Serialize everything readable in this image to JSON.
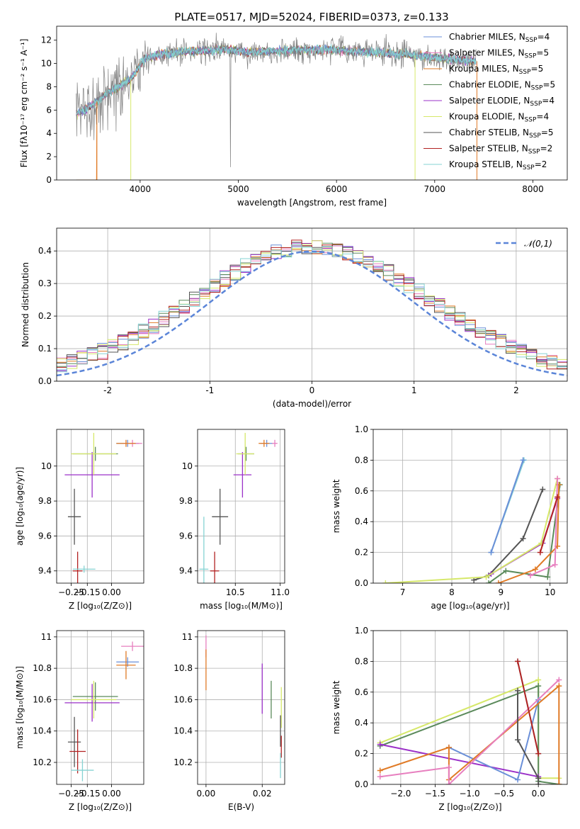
{
  "figure": {
    "title": "PLATE=0517, MJD=52024, FIBERID=0373, z=0.133"
  },
  "palette": {
    "chabrier_miles": "#6a8fd8",
    "salpeter_miles": "#e77fbf",
    "kroupa_miles": "#e07b27",
    "chabrier_elodie": "#5b8a5b",
    "salpeter_elodie": "#9b30c8",
    "kroupa_elodie": "#d6e86a",
    "chabrier_stelib": "#555555",
    "salpeter_stelib": "#b22222",
    "kroupa_stelib": "#86d3d3",
    "data": "#808080",
    "normal_line": "#5b85d8"
  },
  "chart_data": [
    {
      "id": "spectrum",
      "type": "line",
      "title": "PLATE=0517, MJD=52024, FIBERID=0373, z=0.133",
      "xlabel": "wavelength [Angstrom, rest frame]",
      "ylabel": "Flux [fλ10⁻¹⁷ erg cm⁻² s⁻¹ A⁻¹]",
      "xlim": [
        3150,
        8350
      ],
      "ylim": [
        0,
        13.2
      ],
      "xticks": [
        4000,
        5000,
        6000,
        7000,
        8000
      ],
      "yticks": [
        0,
        2,
        4,
        6,
        8,
        10,
        12
      ],
      "grid": false,
      "legend_position": "right",
      "legend": [
        {
          "label": "Chabrier MILES, N",
          "sub": "SSP",
          "eq": "=4",
          "color_key": "chabrier_miles"
        },
        {
          "label": "Salpeter MILES, N",
          "sub": "SSP",
          "eq": "=5",
          "color_key": "salpeter_miles"
        },
        {
          "label": "Kroupa MILES, N",
          "sub": "SSP",
          "eq": "=5",
          "color_key": "kroupa_miles"
        },
        {
          "label": "Chabrier ELODIE, N",
          "sub": "SSP",
          "eq": "=5",
          "color_key": "chabrier_elodie"
        },
        {
          "label": "Salpeter ELODIE, N",
          "sub": "SSP",
          "eq": "=4",
          "color_key": "salpeter_elodie"
        },
        {
          "label": "Kroupa ELODIE, N",
          "sub": "SSP",
          "eq": "=4",
          "color_key": "kroupa_elodie"
        },
        {
          "label": "Chabrier STELIB, N",
          "sub": "SSP",
          "eq": "=5",
          "color_key": "chabrier_stelib"
        },
        {
          "label": "Salpeter STELIB, N",
          "sub": "SSP",
          "eq": "=2",
          "color_key": "salpeter_stelib"
        },
        {
          "label": "Kroupa STELIB, N",
          "sub": "SSP",
          "eq": "=2",
          "color_key": "kroupa_stelib"
        }
      ],
      "continuum": [
        [
          3350,
          5.6
        ],
        [
          3500,
          6.4
        ],
        [
          3700,
          7.6
        ],
        [
          3900,
          8.6
        ],
        [
          4050,
          10.5
        ],
        [
          4300,
          10.9
        ],
        [
          4600,
          11.1
        ],
        [
          4860,
          11.2
        ],
        [
          5100,
          11.0
        ],
        [
          5500,
          11.1
        ],
        [
          5900,
          11.2
        ],
        [
          6300,
          11.0
        ],
        [
          6700,
          10.8
        ],
        [
          7100,
          10.4
        ],
        [
          7400,
          10.2
        ]
      ]
    },
    {
      "id": "residuals",
      "type": "histogram",
      "xlabel": "(data-model)/error",
      "ylabel": "Normed distribution",
      "xlim": [
        -2.5,
        2.5
      ],
      "ylim": [
        0,
        0.47
      ],
      "xticks": [
        -2,
        -1,
        0,
        1,
        2
      ],
      "yticks": [
        0.0,
        0.1,
        0.2,
        0.3,
        0.4
      ],
      "grid": true,
      "legend_position": "upper-right",
      "legend": [
        {
          "label": "𝒩(0,1)",
          "style": "dashed",
          "color_key": "normal_line"
        }
      ],
      "bin_width": 0.1
    },
    {
      "id": "age_vs_Z",
      "type": "scatter",
      "xlabel": "Z [log₁₀(Z/Z⊙)]",
      "ylabel": "age  [log₁₀(age/yr)]",
      "xlim": [
        -0.34,
        0.2
      ],
      "ylim": [
        9.33,
        10.21
      ],
      "xticks": [
        -0.25,
        -0.15,
        0.0
      ],
      "xticklabels": [
        "−0.25",
        "−0.15",
        "0.00"
      ],
      "yticks": [
        9.4,
        9.6,
        9.8,
        10.0
      ],
      "grid": true,
      "points": [
        {
          "model": "chabrier_miles",
          "x": 0.1,
          "y": 10.13,
          "xerr": 0.07,
          "yerr": 0.02
        },
        {
          "model": "salpeter_miles",
          "x": 0.13,
          "y": 10.13,
          "xerr": 0.06,
          "yerr": 0.02
        },
        {
          "model": "kroupa_miles",
          "x": 0.09,
          "y": 10.13,
          "xerr": 0.06,
          "yerr": 0.02
        },
        {
          "model": "chabrier_elodie",
          "x": -0.1,
          "y": 10.07,
          "xerr": 0.14,
          "yerr": 0.04
        },
        {
          "model": "salpeter_elodie",
          "x": -0.12,
          "y": 9.95,
          "xerr": 0.17,
          "yerr": 0.13
        },
        {
          "model": "kroupa_elodie",
          "x": -0.11,
          "y": 10.07,
          "xerr": 0.14,
          "yerr": 0.12
        },
        {
          "model": "chabrier_stelib",
          "x": -0.23,
          "y": 9.71,
          "xerr": 0.04,
          "yerr": 0.16
        },
        {
          "model": "salpeter_stelib",
          "x": -0.21,
          "y": 9.4,
          "xerr": 0.03,
          "yerr": 0.11
        },
        {
          "model": "kroupa_stelib",
          "x": -0.17,
          "y": 9.41,
          "xerr": 0.07,
          "yerr": 0.02
        }
      ]
    },
    {
      "id": "age_vs_mass",
      "type": "scatter",
      "xlabel": "mass [log₁₀(M/M⊙)]",
      "ylabel": "",
      "xlim": [
        10.08,
        11.05
      ],
      "ylim": [
        9.33,
        10.21
      ],
      "xticks": [
        10.5,
        11.0
      ],
      "xticklabels": [
        "10.5",
        "11.0"
      ],
      "yticks": [
        9.4,
        9.6,
        9.8,
        10.0
      ],
      "grid": true,
      "points": [
        {
          "model": "chabrier_miles",
          "x": 10.85,
          "y": 10.13,
          "xerr": 0.07,
          "yerr": 0.02
        },
        {
          "model": "salpeter_miles",
          "x": 10.94,
          "y": 10.13,
          "xerr": 0.03,
          "yerr": 0.02
        },
        {
          "model": "kroupa_miles",
          "x": 10.82,
          "y": 10.13,
          "xerr": 0.06,
          "yerr": 0.02
        },
        {
          "model": "chabrier_elodie",
          "x": 10.62,
          "y": 10.07,
          "xerr": 0.09,
          "yerr": 0.04
        },
        {
          "model": "salpeter_elodie",
          "x": 10.58,
          "y": 9.95,
          "xerr": 0.1,
          "yerr": 0.13
        },
        {
          "model": "kroupa_elodie",
          "x": 10.61,
          "y": 10.07,
          "xerr": 0.1,
          "yerr": 0.12
        },
        {
          "model": "chabrier_stelib",
          "x": 10.33,
          "y": 9.71,
          "xerr": 0.09,
          "yerr": 0.16
        },
        {
          "model": "salpeter_stelib",
          "x": 10.27,
          "y": 9.4,
          "xerr": 0.05,
          "yerr": 0.11
        },
        {
          "model": "kroupa_stelib",
          "x": 10.15,
          "y": 9.41,
          "xerr": 0.05,
          "yerr": 0.3
        }
      ]
    },
    {
      "id": "mass_weight_vs_age",
      "type": "line",
      "xlabel": "age  [log₁₀(age/yr)]",
      "ylabel": "mass weight",
      "xlim": [
        6.4,
        10.35
      ],
      "ylim": [
        0,
        1.0
      ],
      "xticks": [
        7,
        8,
        9,
        10
      ],
      "yticks": [
        0.0,
        0.2,
        0.4,
        0.6,
        0.8,
        1.0
      ],
      "grid": true,
      "series": [
        {
          "model": "kroupa_stelib",
          "points": [
            [
              8.8,
              0.2
            ],
            [
              9.47,
              0.8
            ]
          ]
        },
        {
          "model": "chabrier_miles",
          "points": [
            [
              8.8,
              0.2
            ],
            [
              9.45,
              0.8
            ]
          ]
        },
        {
          "model": "chabrier_stelib",
          "points": [
            [
              8.45,
              0.02
            ],
            [
              8.75,
              0.05
            ],
            [
              9.45,
              0.29
            ],
            [
              9.85,
              0.61
            ]
          ]
        },
        {
          "model": "salpeter_elodie",
          "points": [
            [
              8.8,
              0.06
            ],
            [
              9.85,
              0.26
            ],
            [
              10.15,
              0.55
            ]
          ]
        },
        {
          "model": "kroupa_elodie",
          "points": [
            [
              6.65,
              0.0
            ],
            [
              8.7,
              0.04
            ],
            [
              9.82,
              0.26
            ],
            [
              10.15,
              0.68
            ]
          ]
        },
        {
          "model": "chabrier_elodie",
          "points": [
            [
              8.75,
              0.0
            ],
            [
              9.1,
              0.08
            ],
            [
              9.95,
              0.04
            ],
            [
              10.2,
              0.64
            ]
          ]
        },
        {
          "model": "kroupa_miles",
          "points": [
            [
              8.95,
              0.0
            ],
            [
              9.7,
              0.09
            ],
            [
              10.15,
              0.24
            ],
            [
              10.18,
              0.64
            ]
          ]
        },
        {
          "model": "salpeter_miles",
          "points": [
            [
              9.6,
              0.05
            ],
            [
              10.1,
              0.12
            ],
            [
              10.15,
              0.68
            ]
          ]
        },
        {
          "model": "salpeter_stelib",
          "points": [
            [
              9.8,
              0.2
            ],
            [
              10.15,
              0.56
            ]
          ]
        }
      ]
    },
    {
      "id": "mass_vs_Z",
      "type": "scatter",
      "xlabel": "Z [log₁₀(Z/Z⊙)]",
      "ylabel": "mass [log₁₀(M/M⊙)]",
      "xlim": [
        -0.34,
        0.2
      ],
      "ylim": [
        10.06,
        11.04
      ],
      "xticks": [
        -0.25,
        -0.15,
        0.0
      ],
      "xticklabels": [
        "−0.25",
        "−0.15",
        "0.00"
      ],
      "yticks": [
        10.2,
        10.4,
        10.6,
        10.8,
        11.0
      ],
      "grid": true,
      "points": [
        {
          "model": "chabrier_miles",
          "x": 0.1,
          "y": 10.84,
          "xerr": 0.07,
          "yerr": 0.03
        },
        {
          "model": "salpeter_miles",
          "x": 0.13,
          "y": 10.94,
          "xerr": 0.07,
          "yerr": 0.03
        },
        {
          "model": "kroupa_miles",
          "x": 0.09,
          "y": 10.82,
          "xerr": 0.06,
          "yerr": 0.09
        },
        {
          "model": "chabrier_elodie",
          "x": -0.1,
          "y": 10.62,
          "xerr": 0.14,
          "yerr": 0.09
        },
        {
          "model": "salpeter_elodie",
          "x": -0.12,
          "y": 10.58,
          "xerr": 0.17,
          "yerr": 0.12
        },
        {
          "model": "kroupa_elodie",
          "x": -0.11,
          "y": 10.6,
          "xerr": 0.14,
          "yerr": 0.12
        },
        {
          "model": "chabrier_stelib",
          "x": -0.23,
          "y": 10.33,
          "xerr": 0.04,
          "yerr": 0.16
        },
        {
          "model": "salpeter_stelib",
          "x": -0.21,
          "y": 10.27,
          "xerr": 0.05,
          "yerr": 0.14
        },
        {
          "model": "kroupa_stelib",
          "x": -0.18,
          "y": 10.15,
          "xerr": 0.07,
          "yerr": 0.07
        }
      ]
    },
    {
      "id": "mass_vs_ebv",
      "type": "scatter",
      "xlabel": "E(B-V)",
      "ylabel": "",
      "xlim": [
        -0.003,
        0.028
      ],
      "ylim": [
        10.06,
        11.04
      ],
      "xticks": [
        0.0,
        0.02
      ],
      "xticklabels": [
        "0.00",
        "0.02"
      ],
      "yticks": [
        10.2,
        10.4,
        10.6,
        10.8,
        11.0
      ],
      "grid": true,
      "points": [
        {
          "model": "salpeter_miles",
          "x": 0.0,
          "y": 10.94,
          "xerr": 0.0,
          "yerr": 0.07
        },
        {
          "model": "kroupa_miles",
          "x": 0.0,
          "y": 10.79,
          "xerr": 0.0,
          "yerr": 0.13
        },
        {
          "model": "salpeter_elodie",
          "x": 0.02,
          "y": 10.67,
          "xerr": 0.0,
          "yerr": 0.16
        },
        {
          "model": "chabrier_elodie",
          "x": 0.0232,
          "y": 10.6,
          "xerr": 0.0,
          "yerr": 0.12
        },
        {
          "model": "kroupa_elodie",
          "x": 0.0268,
          "y": 10.55,
          "xerr": 0.0,
          "yerr": 0.13
        },
        {
          "model": "chabrier_stelib",
          "x": 0.0265,
          "y": 10.4,
          "xerr": 0.0,
          "yerr": 0.1
        },
        {
          "model": "salpeter_stelib",
          "x": 0.0268,
          "y": 10.3,
          "xerr": 0.0,
          "yerr": 0.07
        },
        {
          "model": "kroupa_stelib",
          "x": 0.0265,
          "y": 10.18,
          "xerr": 0.0,
          "yerr": 0.08
        }
      ]
    },
    {
      "id": "mass_weight_vs_Z",
      "type": "line",
      "xlabel": "Z [log₁₀(Z/Z⊙)]",
      "ylabel": "mass weight",
      "xlim": [
        -2.4,
        0.42
      ],
      "ylim": [
        0,
        1.0
      ],
      "xticks": [
        -2.0,
        -1.5,
        -1.0,
        -0.5,
        0.0
      ],
      "xticklabels": [
        "−2.0",
        "−1.5",
        "−1.0",
        "−0.5",
        "0.0"
      ],
      "yticks": [
        0.0,
        0.2,
        0.4,
        0.6,
        0.8,
        1.0
      ],
      "grid": true,
      "series": [
        {
          "model": "kroupa_elodie",
          "points": [
            [
              -2.3,
              0.27
            ],
            [
              0.0,
              0.68
            ],
            [
              0.0,
              0.04
            ],
            [
              0.3,
              0.04
            ]
          ]
        },
        {
          "model": "chabrier_elodie",
          "points": [
            [
              -2.3,
              0.25
            ],
            [
              0.0,
              0.64
            ],
            [
              0.0,
              0.02
            ],
            [
              0.3,
              0.0
            ]
          ]
        },
        {
          "model": "salpeter_elodie",
          "points": [
            [
              -2.3,
              0.26
            ],
            [
              0.0,
              0.05
            ]
          ]
        },
        {
          "model": "chabrier_miles",
          "points": [
            [
              -1.3,
              0.24
            ],
            [
              -0.3,
              0.03
            ],
            [
              0.0,
              0.55
            ]
          ]
        },
        {
          "model": "kroupa_miles",
          "points": [
            [
              -2.3,
              0.09
            ],
            [
              -1.3,
              0.24
            ],
            [
              -1.3,
              0.03
            ],
            [
              0.3,
              0.64
            ],
            [
              0.3,
              0.0
            ]
          ]
        },
        {
          "model": "salpeter_miles",
          "points": [
            [
              -2.3,
              0.05
            ],
            [
              -1.3,
              0.11
            ],
            [
              -1.3,
              0.0
            ],
            [
              0.3,
              0.68
            ]
          ]
        },
        {
          "model": "chabrier_stelib",
          "points": [
            [
              -0.3,
              0.61
            ],
            [
              -0.3,
              0.29
            ],
            [
              0.0,
              0.04
            ],
            [
              0.0,
              0.0
            ]
          ]
        },
        {
          "model": "kroupa_stelib",
          "points": [
            [
              -0.3,
              0.8
            ],
            [
              0.0,
              0.2
            ]
          ]
        },
        {
          "model": "salpeter_stelib",
          "points": [
            [
              -0.3,
              0.8
            ],
            [
              0.0,
              0.2
            ]
          ]
        }
      ]
    }
  ]
}
